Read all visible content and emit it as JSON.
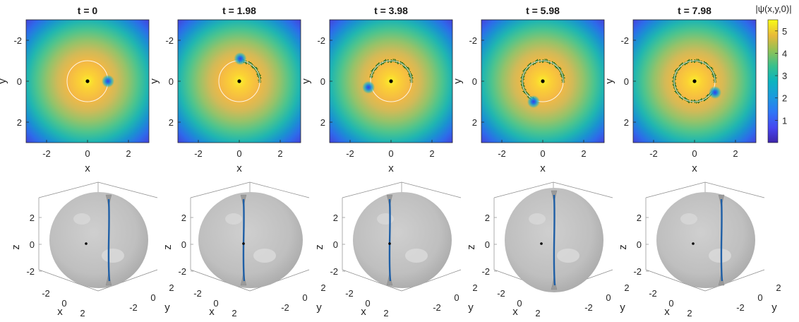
{
  "chart_data": {
    "type": "heatmap",
    "colorbar": {
      "label": "|ψ(x,y,0)|",
      "ticks": [
        1,
        2,
        3,
        4,
        5
      ],
      "range": [
        0,
        5.5
      ],
      "colormap": "parula"
    },
    "top_axes": {
      "xlabel": "x",
      "ylabel": "y",
      "xticks": [
        -2,
        0,
        2
      ],
      "yticks": [
        -2,
        0,
        2
      ],
      "xlim": [
        -3,
        3
      ],
      "ylim": [
        -3,
        3
      ],
      "y_reversed": true,
      "circle_radius": 1
    },
    "bottom_axes": {
      "xlabel": "x",
      "ylabel": "y",
      "zlabel": "z",
      "xticks": [
        -2,
        0,
        2
      ],
      "yticks": [
        -2,
        0,
        2
      ],
      "zticks": [
        2,
        0,
        -2
      ]
    },
    "panels": [
      {
        "title": "t = 0",
        "time": 0,
        "vortex": [
          1.0,
          0.0
        ],
        "trail_start_deg": 0,
        "trail_end_deg": 0
      },
      {
        "title": "t = 1.98",
        "time": 1.98,
        "vortex": [
          0.05,
          -1.1
        ],
        "trail_start_deg": 0,
        "trail_end_deg": 90
      },
      {
        "title": "t = 3.98",
        "time": 3.98,
        "vortex": [
          -1.1,
          0.3
        ],
        "trail_start_deg": 0,
        "trail_end_deg": 170
      },
      {
        "title": "t = 5.98",
        "time": 5.98,
        "vortex": [
          -0.45,
          1.0
        ],
        "trail_start_deg": 0,
        "trail_end_deg": 245
      },
      {
        "title": "t = 7.98",
        "time": 7.98,
        "vortex": [
          1.0,
          0.55
        ],
        "trail_start_deg": 0,
        "trail_end_deg": 330
      }
    ]
  }
}
